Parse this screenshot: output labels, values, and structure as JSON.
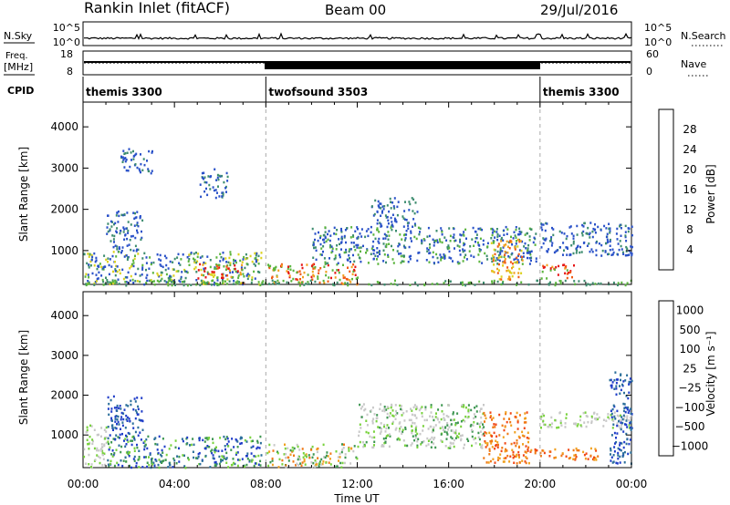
{
  "header": {
    "station": "Rankin Inlet (fitACF)",
    "beam": "Beam 00",
    "date": "29/Jul/2016"
  },
  "strips": {
    "nsky_label": "N.Sky",
    "nsky_ticks": [
      "10^5",
      "10^0"
    ],
    "nsearch_label": "N.Search",
    "freq_label_1": "Freq.",
    "freq_label_2": "[MHz]",
    "freq_ticks": [
      "18",
      "8"
    ],
    "nave_ticks": [
      "60",
      "0"
    ],
    "nave_label": "Nave",
    "cpid_label": "CPID",
    "modes": [
      {
        "name": "themis 3300",
        "start_h": 0,
        "end_h": 8
      },
      {
        "name": "twofsound 3503",
        "start_h": 8,
        "end_h": 20
      },
      {
        "name": "themis 3300",
        "start_h": 20,
        "end_h": 24
      }
    ]
  },
  "chart_data": [
    {
      "type": "heatmap",
      "title": "Power",
      "xlabel": "",
      "ylabel": "Slant Range [km]",
      "xlim_hours": [
        0,
        24
      ],
      "ylim_km": [
        180,
        4600
      ],
      "ytick_labels": [
        "1000",
        "2000",
        "3000",
        "4000"
      ],
      "colorbar": {
        "label": "Power [dB]",
        "ticks": [
          "4",
          "8",
          "12",
          "16",
          "20",
          "24",
          "28"
        ],
        "colors": [
          "#1e1eff",
          "#2850c8",
          "#3c8c6e",
          "#5ab43c",
          "#dcd21e",
          "#f0a01e",
          "#f05a14",
          "#e61414"
        ]
      },
      "regions": [
        {
          "t0": 0.0,
          "t1": 7.8,
          "r0": 200,
          "r1": 1000,
          "level": "mixed-blue-green"
        },
        {
          "t0": 1.0,
          "t1": 2.6,
          "r0": 1000,
          "r1": 2000,
          "level": "blue"
        },
        {
          "t0": 1.6,
          "t1": 3.0,
          "r0": 2900,
          "r1": 3500,
          "level": "blue"
        },
        {
          "t0": 5.1,
          "t1": 6.3,
          "r0": 2300,
          "r1": 3000,
          "level": "blue"
        },
        {
          "t0": 5.0,
          "t1": 7.0,
          "r0": 200,
          "r1": 700,
          "level": "red-orange"
        },
        {
          "t0": 8.0,
          "t1": 12.0,
          "r0": 200,
          "r1": 700,
          "level": "red-orange"
        },
        {
          "t0": 10.0,
          "t1": 19.8,
          "r0": 700,
          "r1": 1600,
          "level": "blue-green"
        },
        {
          "t0": 12.6,
          "t1": 14.6,
          "r0": 1600,
          "r1": 2300,
          "level": "blue"
        },
        {
          "t0": 17.8,
          "t1": 19.2,
          "r0": 300,
          "r1": 1300,
          "level": "orange"
        },
        {
          "t0": 20.0,
          "t1": 21.5,
          "r0": 350,
          "r1": 700,
          "level": "red-orange"
        },
        {
          "t0": 20.0,
          "t1": 24.0,
          "r0": 900,
          "r1": 1700,
          "level": "blue"
        },
        {
          "t0": 0.0,
          "t1": 24.0,
          "r0": 180,
          "r1": 300,
          "level": "green"
        }
      ]
    },
    {
      "type": "heatmap",
      "title": "Velocity",
      "xlabel": "Time UT",
      "ylabel": "Slant Range [km]",
      "xlim_hours": [
        0,
        24
      ],
      "ylim_km": [
        180,
        4600
      ],
      "ytick_labels": [
        "1000",
        "2000",
        "3000",
        "4000"
      ],
      "xtick_labels": [
        "00:00",
        "04:00",
        "08:00",
        "12:00",
        "16:00",
        "20:00",
        "00:00"
      ],
      "colorbar": {
        "label": "Velocity [m s⁻¹]",
        "ticks": [
          "1000",
          "500",
          "100",
          "25",
          "−25",
          "−100",
          "−500",
          "−1000"
        ],
        "colors": [
          "#1e3cc8",
          "#2a6e9a",
          "#3c9650",
          "#78d23c",
          "#c8c8c8",
          "#f0a01e",
          "#f07814",
          "#f04614",
          "#e61414"
        ]
      },
      "regions": [
        {
          "t0": 0.0,
          "t1": 1.0,
          "r0": 200,
          "r1": 1300,
          "level": "gray"
        },
        {
          "t0": 1.0,
          "t1": 7.8,
          "r0": 200,
          "r1": 1000,
          "level": "blue-green"
        },
        {
          "t0": 1.0,
          "t1": 2.6,
          "r0": 1000,
          "r1": 2000,
          "level": "blue"
        },
        {
          "t0": 8.0,
          "t1": 12.0,
          "r0": 200,
          "r1": 800,
          "level": "orange-green"
        },
        {
          "t0": 12.0,
          "t1": 17.5,
          "r0": 700,
          "r1": 1800,
          "level": "gray-green"
        },
        {
          "t0": 17.5,
          "t1": 19.5,
          "r0": 300,
          "r1": 1600,
          "level": "orange"
        },
        {
          "t0": 19.5,
          "t1": 22.5,
          "r0": 400,
          "r1": 700,
          "level": "orange"
        },
        {
          "t0": 20.0,
          "t1": 24.0,
          "r0": 1200,
          "r1": 1600,
          "level": "gray"
        },
        {
          "t0": 23.0,
          "t1": 24.0,
          "r0": 300,
          "r1": 2600,
          "level": "blue"
        }
      ]
    }
  ]
}
